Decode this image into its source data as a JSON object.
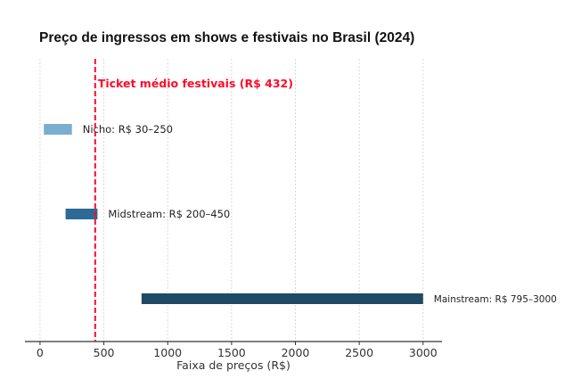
{
  "chart_data": {
    "type": "bar",
    "orientation": "horizontal-range",
    "title": "Preço de ingressos em shows e festivais no Brasil (2024)",
    "xlabel": "Faixa de preços (R$)",
    "ylabel": "",
    "xlim": [
      -118,
      3148
    ],
    "xticks": [
      0,
      500,
      1000,
      1500,
      2000,
      2500,
      3000
    ],
    "grid": "vertical-dashed",
    "categories": [
      "Nicho",
      "Midstream",
      "Mainstream"
    ],
    "series": [
      {
        "category": "Nicho",
        "start": 30,
        "end": 250,
        "label": "Nicho: R$ 30–250",
        "color": "#7aadd0"
      },
      {
        "category": "Midstream",
        "start": 200,
        "end": 450,
        "label": "Midstream: R$ 200–450",
        "color": "#2e6a96"
      },
      {
        "category": "Mainstream",
        "start": 795,
        "end": 3000,
        "label": "Mainstream: R$ 795–3000",
        "color": "#1f4a66"
      }
    ],
    "reference_line": {
      "value": 432,
      "label": "Ticket médio festivais (R$ 432)",
      "color": "#ff0a2a",
      "style": "dashed"
    }
  }
}
